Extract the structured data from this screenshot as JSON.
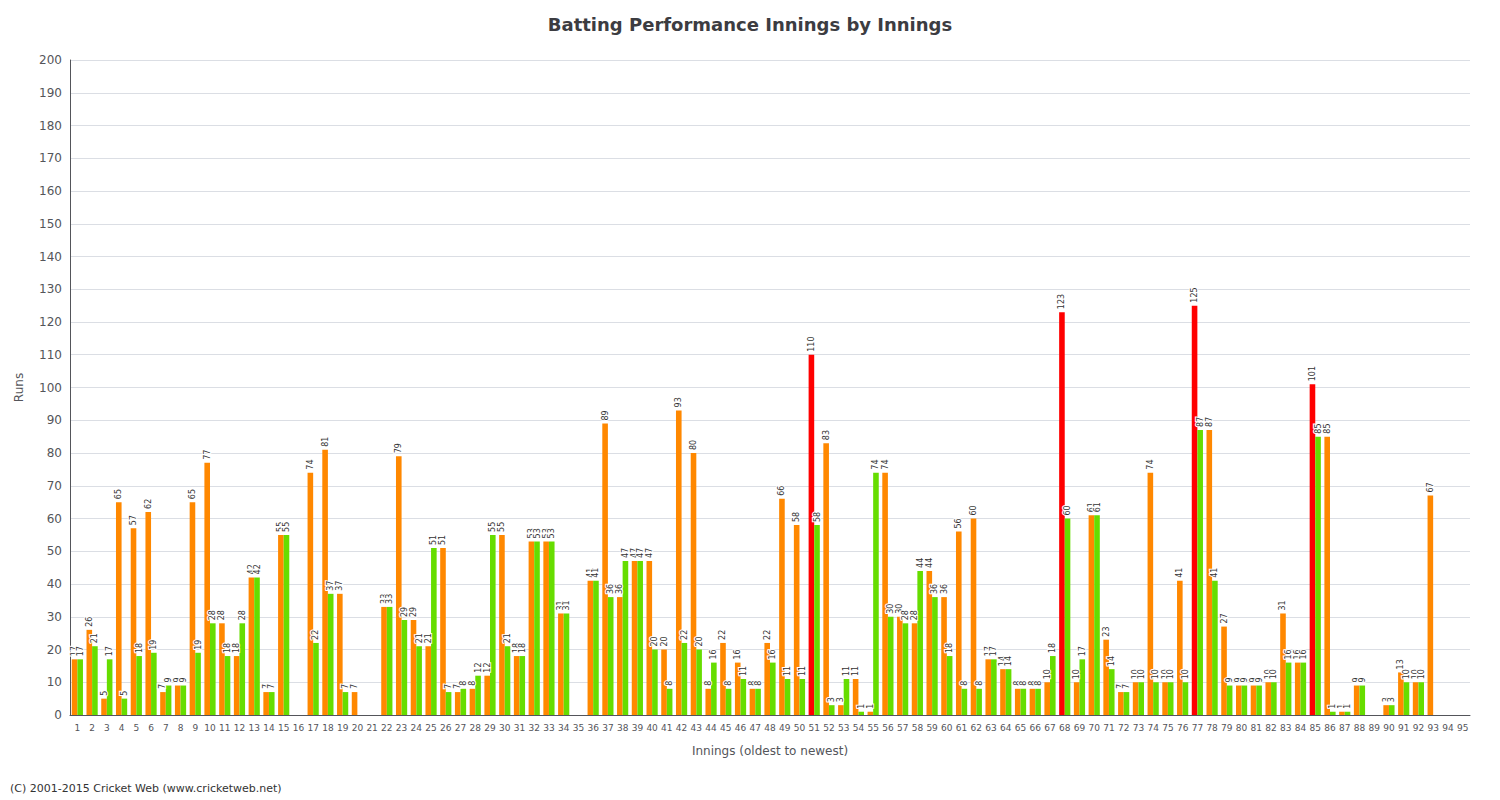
{
  "chart_data": {
    "type": "bar",
    "title": "Batting Performance Innings by Innings",
    "xlabel": "Innings (oldest to newest)",
    "ylabel": "Runs",
    "annotations": [
      "(C) 2001-2015 Cricket Web (www.cricketweb.net)"
    ],
    "categories": [
      "1",
      "2",
      "3",
      "4",
      "5",
      "6",
      "7",
      "8",
      "9",
      "10",
      "11",
      "12",
      "13",
      "14",
      "15",
      "16",
      "17",
      "18",
      "19",
      "20",
      "21",
      "22",
      "23",
      "24",
      "25",
      "26",
      "27",
      "28",
      "29",
      "30",
      "31",
      "32",
      "33",
      "34",
      "35",
      "36",
      "37",
      "38",
      "39",
      "40",
      "41",
      "42",
      "43",
      "44",
      "45",
      "46",
      "47",
      "48",
      "49",
      "50",
      "51",
      "52",
      "53",
      "54",
      "55",
      "56",
      "57",
      "58",
      "59",
      "60",
      "61",
      "62",
      "63",
      "64",
      "65",
      "66",
      "67",
      "68",
      "69",
      "70",
      "71",
      "72",
      "73",
      "74",
      "75",
      "76",
      "77",
      "78",
      "79",
      "80",
      "81",
      "82",
      "83",
      "84",
      "85",
      "86",
      "87",
      "88",
      "89",
      "90",
      "91",
      "92",
      "93",
      "94",
      "95"
    ],
    "series": [
      {
        "colors": [
          "#ff8800",
          "#ff8800",
          "#ff8800",
          "#ff8800",
          "#ff8800",
          "#ff8800",
          "#ff8800",
          "#ff8800",
          "#ff8800",
          "#ff8800",
          "#ff8800",
          "#ff8800",
          "#ff8800",
          "#ff8800",
          "#ff8800",
          "#ff8800",
          "#ff8800",
          "#ff8800",
          "#ff8800",
          "#ff8800",
          "#ff8800",
          "#ff8800",
          "#ff8800",
          "#ff8800",
          "#ff8800",
          "#ff8800",
          "#ff8800",
          "#ff8800",
          "#ff8800",
          "#ff8800",
          "#ff8800",
          "#ff8800",
          "#ff8800",
          "#ff8800",
          "#ff8800",
          "#ff8800",
          "#ff8800",
          "#ff8800",
          "#ff8800",
          "#ff8800",
          "#ff8800",
          "#ff8800",
          "#ff8800",
          "#ff8800",
          "#ff8800",
          "#ff8800",
          "#ff8800",
          "#ff8800",
          "#ff8800",
          "#ff8800",
          "#ff0000",
          "#ff8800",
          "#ff8800",
          "#ff8800",
          "#ff8800",
          "#ff8800",
          "#ff8800",
          "#ff8800",
          "#ff8800",
          "#ff8800",
          "#ff8800",
          "#ff8800",
          "#ff8800",
          "#ff8800",
          "#ff8800",
          "#ff8800",
          "#ff8800",
          "#ff0000",
          "#ff8800",
          "#ff8800",
          "#ff8800",
          "#ff8800",
          "#ff8800",
          "#ff8800",
          "#ff8800",
          "#ff8800",
          "#ff0000",
          "#ff8800",
          "#ff8800",
          "#ff8800",
          "#ff8800",
          "#ff8800",
          "#ff8800",
          "#ff8800",
          "#ff0000",
          "#ff8800",
          "#ff8800",
          "#ff8800",
          "#ff8800",
          "#ff8800",
          "#ff8800",
          "#ff8800",
          "#ff8800",
          "#ff8800",
          "#ff8800"
        ],
        "values": [
          17,
          26,
          5,
          65,
          57,
          62,
          7,
          9,
          65,
          77,
          28,
          18,
          42,
          7,
          55,
          0,
          74,
          81,
          37,
          7,
          0,
          33,
          79,
          29,
          21,
          51,
          7,
          8,
          12,
          55,
          18,
          53,
          53,
          31,
          0,
          41,
          89,
          36,
          47,
          47,
          20,
          93,
          80,
          8,
          22,
          16,
          8,
          22,
          66,
          58,
          110,
          83,
          3,
          11,
          1,
          74,
          30,
          28,
          44,
          36,
          56,
          60,
          17,
          14,
          8,
          8,
          10,
          123,
          10,
          61,
          23,
          7,
          10,
          74,
          10,
          41,
          125,
          87,
          27,
          9,
          9,
          10,
          31,
          16,
          101,
          85,
          1,
          9,
          0,
          3,
          13,
          10,
          67,
          0,
          0
        ],
        "value_labels": [
          "17",
          "26",
          "5",
          "65",
          "57",
          "62",
          "7",
          "9",
          "65",
          "77",
          "28",
          "18",
          "42",
          "7",
          "55",
          null,
          "74",
          "81",
          "37",
          "7",
          null,
          "33",
          "79",
          "29",
          "21",
          "51",
          "7",
          "8",
          "12",
          "55",
          "18",
          "53",
          "53",
          "31",
          null,
          "41",
          "89",
          "36",
          "47",
          "47",
          "20",
          "93",
          "80",
          "8",
          "22",
          "16",
          "8",
          "22",
          "66",
          "58",
          "110",
          "83",
          "3",
          "11",
          "1",
          "74",
          "30",
          "28",
          "44",
          "36",
          "56",
          "60",
          "17",
          "14",
          "8",
          "8",
          "10",
          "123",
          "10",
          "61",
          "23",
          "7",
          "10",
          "74",
          "10",
          "41",
          "125",
          "87",
          "27",
          "9",
          "9",
          "10",
          "31",
          "16",
          "101",
          "85",
          "1",
          "9",
          null,
          "3",
          "13",
          "10",
          "67",
          null,
          null
        ]
      },
      {
        "color": "#66dd00",
        "values": [
          17,
          21,
          17,
          5,
          18,
          19,
          9,
          9,
          19,
          28,
          18,
          28,
          42,
          7,
          55,
          0,
          22,
          37,
          7,
          0,
          0,
          33,
          29,
          21,
          51,
          7,
          8,
          12,
          55,
          21,
          18,
          53,
          53,
          31,
          0,
          41,
          36,
          47,
          47,
          20,
          8,
          22,
          20,
          16,
          8,
          11,
          8,
          16,
          11,
          11,
          58,
          3,
          11,
          1,
          74,
          30,
          28,
          44,
          36,
          18,
          8,
          8,
          17,
          14,
          8,
          8,
          18,
          60,
          17,
          61,
          14,
          7,
          10,
          10,
          10,
          10,
          87,
          41,
          9,
          9,
          9,
          10,
          16,
          16,
          85,
          1,
          1,
          9,
          0,
          3,
          10,
          10,
          0,
          0,
          0
        ],
        "value_labels": [
          "17",
          "21",
          "17",
          "5",
          "18",
          "19",
          "9",
          "9",
          "19",
          "28",
          "18",
          "28",
          "42",
          "7",
          "55",
          null,
          "22",
          "37",
          "7",
          null,
          null,
          "33",
          "29",
          "21",
          "51",
          "7",
          "8",
          "12",
          "55",
          "21",
          "18",
          "53",
          "53",
          "31",
          null,
          "41",
          "36",
          "47",
          "47",
          "20",
          "8",
          "22",
          "20",
          "16",
          "8",
          "11",
          "8",
          "16",
          "11",
          "11",
          "58",
          "3",
          "11",
          "1",
          "74",
          "30",
          "28",
          "44",
          "36",
          "18",
          "8",
          "8",
          "17",
          "14",
          "8",
          "8",
          "18",
          "60",
          "17",
          "61",
          "14",
          "7",
          "10",
          "10",
          "10",
          "10",
          "87",
          "41",
          "9",
          "9",
          "9",
          "10",
          "16",
          "16",
          "85",
          "1",
          "1",
          "9",
          null,
          "3",
          "10",
          "10",
          null,
          null,
          null
        ]
      }
    ],
    "ylim": [
      0,
      200
    ],
    "yticks": [
      0,
      10,
      20,
      30,
      40,
      50,
      60,
      70,
      80,
      90,
      100,
      110,
      120,
      130,
      140,
      150,
      160,
      170,
      180,
      190,
      200
    ],
    "grid": true,
    "data_labels": true
  }
}
